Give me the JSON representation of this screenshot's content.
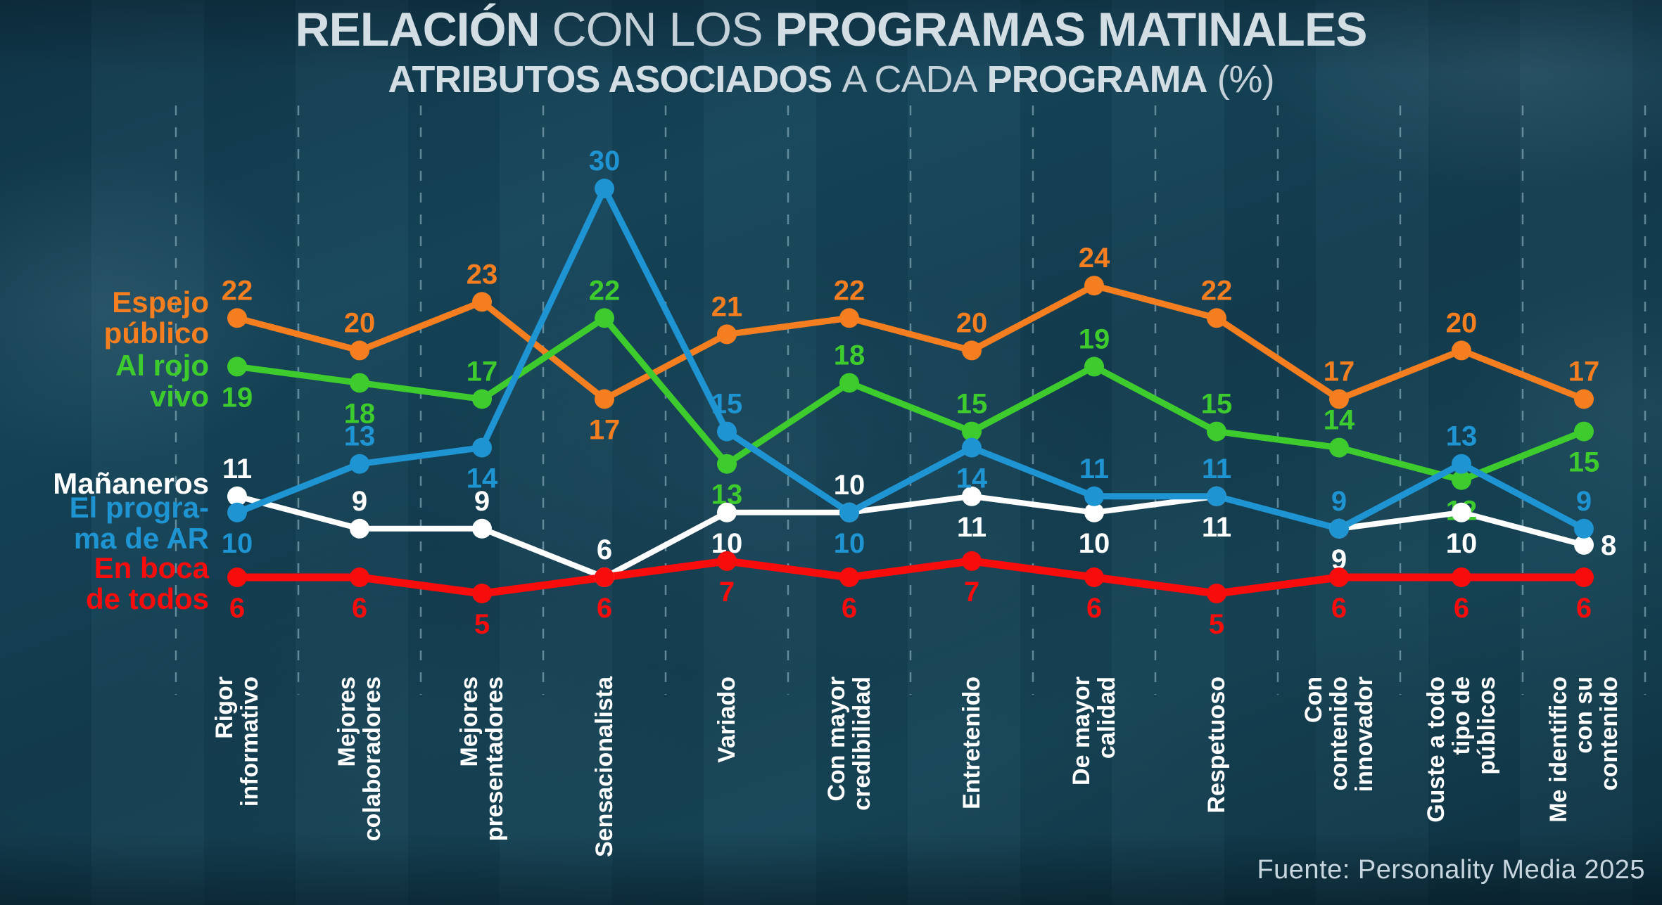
{
  "title": {
    "l1_b1": "RELACIÓN",
    "l1_l1": "CON LOS",
    "l1_b2": "PROGRAMAS MATINALES",
    "l2_b1": "ATRIBUTOS ASOCIADOS",
    "l2_l1": "A CADA",
    "l2_b2": "PROGRAMA",
    "l2_l2": "(%)"
  },
  "footer": {
    "source": "Fuente: Personality Media 2025"
  },
  "chart_data": {
    "type": "line",
    "title": "RELACIÓN CON LOS PROGRAMAS MATINALES — ATRIBUTOS ASOCIADOS A CADA PROGRAMA (%)",
    "ylim": [
      0,
      32
    ],
    "grid": "vertical-dashed",
    "legend_position": "left",
    "colors": {
      "orange": "#F57E20",
      "green": "#3ECB2D",
      "white": "#FFFFFF",
      "blue": "#1E94D2",
      "red": "#F80C0C",
      "gridline": "#9FC2D0",
      "title_text": "#D3DDE4",
      "footer_text": "#C7D5DF"
    },
    "categories": [
      [
        "Rigor",
        "informativo"
      ],
      [
        "Mejores",
        "colaboradores"
      ],
      [
        "Mejores",
        "presentadores"
      ],
      [
        "Sensacionalista"
      ],
      [
        "Variado"
      ],
      [
        "Con mayor",
        "credibilidad"
      ],
      [
        "Entretenido"
      ],
      [
        "De mayor",
        "calidad"
      ],
      [
        "Respetuoso"
      ],
      [
        "Con",
        "contenido",
        "innovador"
      ],
      [
        "Guste a todo",
        "tipo de",
        "públicos"
      ],
      [
        "Me identifico",
        "con su",
        "contenido"
      ]
    ],
    "series": [
      {
        "name": "Espejo público",
        "legend_lines": [
          "Espejo",
          "público"
        ],
        "color": "#F57E20",
        "values": [
          22,
          20,
          23,
          17,
          21,
          22,
          20,
          24,
          22,
          17,
          20,
          17
        ],
        "label_pos": [
          "A",
          "A",
          "A",
          "B",
          "A",
          "A",
          "A",
          "A",
          "A",
          "A",
          "A",
          "A"
        ]
      },
      {
        "name": "Al rojo vivo",
        "legend_lines": [
          "Al rojo",
          "vivo"
        ],
        "color": "#3ECB2D",
        "values": [
          19,
          18,
          17,
          22,
          13,
          18,
          15,
          19,
          15,
          14,
          12,
          15
        ],
        "label_pos": [
          "B",
          "B",
          "A",
          "A",
          "B",
          "A",
          "A",
          "A",
          "A",
          "A",
          "B",
          "B"
        ]
      },
      {
        "name": "Mañaneros",
        "legend_lines": [
          "Mañaneros"
        ],
        "color": "#FFFFFF",
        "values": [
          11,
          9,
          9,
          6,
          10,
          10,
          11,
          10,
          11,
          9,
          10,
          8
        ],
        "label_pos": [
          "A",
          "A",
          "A",
          "A",
          "B",
          "A",
          "B",
          "B",
          "B",
          "B",
          "B",
          "R"
        ]
      },
      {
        "name": "El programa de AR",
        "legend_lines": [
          "El progra-",
          "ma de AR"
        ],
        "color": "#1E94D2",
        "values": [
          10,
          13,
          14,
          30,
          15,
          10,
          14,
          11,
          11,
          9,
          13,
          9
        ],
        "label_pos": [
          "B",
          "A",
          "B",
          "A",
          "A",
          "B",
          "B",
          "A",
          "A",
          "A",
          "A",
          "A"
        ]
      },
      {
        "name": "En boca de todos",
        "legend_lines": [
          "En boca",
          "de todos"
        ],
        "color": "#F80C0C",
        "values": [
          6,
          6,
          5,
          6,
          7,
          6,
          7,
          6,
          5,
          6,
          6,
          6
        ],
        "label_pos": [
          "B",
          "B",
          "B",
          "B",
          "B",
          "B",
          "B",
          "B",
          "B",
          "B",
          "B",
          "B"
        ]
      }
    ]
  }
}
